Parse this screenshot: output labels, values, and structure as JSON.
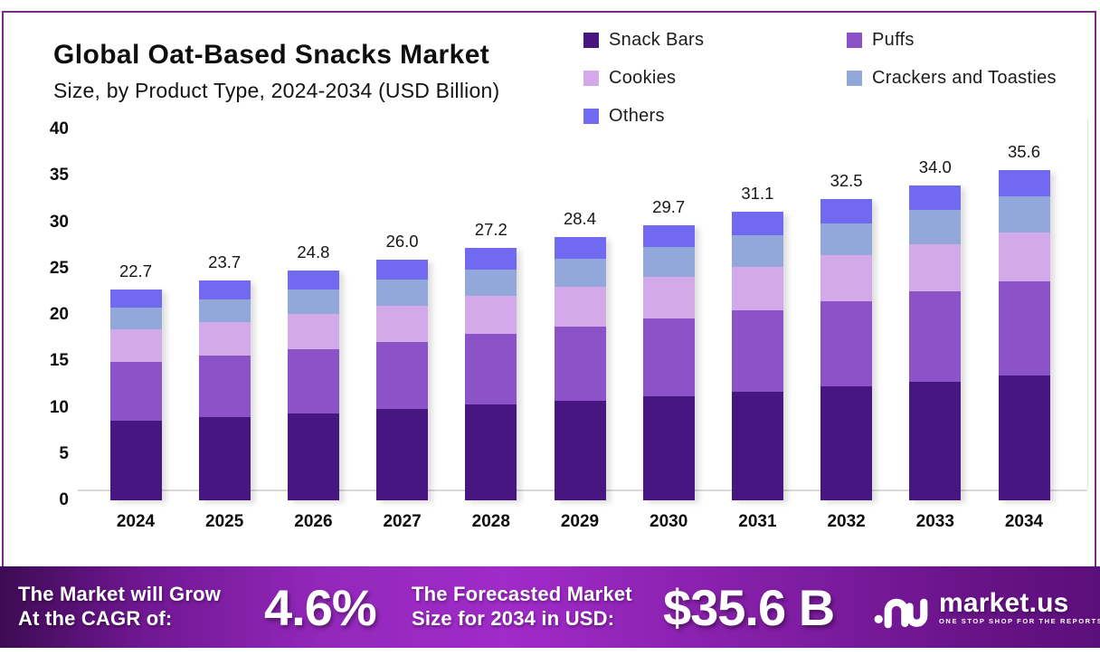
{
  "header": {
    "title": "Global Oat-Based Snacks Market",
    "subtitle": "Size, by  Product Type, 2024-2034 (USD Billion)"
  },
  "legend": {
    "position": "top-right",
    "items": [
      {
        "label": "Snack Bars",
        "color": "#481680"
      },
      {
        "label": "Puffs",
        "color": "#8C52C7"
      },
      {
        "label": "Cookies",
        "color": "#D3A9EA"
      },
      {
        "label": "Crackers and Toasties",
        "color": "#92A8DB"
      },
      {
        "label": "Others",
        "color": "#7169F0"
      }
    ]
  },
  "chart_data": {
    "type": "bar",
    "stacked": true,
    "title": "Global Oat-Based Snacks Market Size, by Product Type, 2024-2034 (USD Billion)",
    "categories": [
      "2024",
      "2025",
      "2026",
      "2027",
      "2028",
      "2029",
      "2030",
      "2031",
      "2032",
      "2033",
      "2034"
    ],
    "series": [
      {
        "name": "Snack Bars",
        "color": "#481680",
        "values": [
          8.6,
          9.0,
          9.4,
          9.9,
          10.3,
          10.7,
          11.2,
          11.7,
          12.3,
          12.8,
          13.5
        ]
      },
      {
        "name": "Puffs",
        "color": "#8C52C7",
        "values": [
          6.3,
          6.6,
          6.9,
          7.2,
          7.6,
          8.0,
          8.4,
          8.8,
          9.2,
          9.7,
          10.1
        ]
      },
      {
        "name": "Cookies",
        "color": "#D3A9EA",
        "values": [
          3.5,
          3.6,
          3.8,
          3.9,
          4.1,
          4.3,
          4.5,
          4.7,
          4.9,
          5.1,
          5.3
        ]
      },
      {
        "name": "Crackers and Toasties",
        "color": "#92A8DB",
        "values": [
          2.4,
          2.5,
          2.6,
          2.8,
          2.9,
          3.0,
          3.2,
          3.4,
          3.5,
          3.7,
          3.9
        ]
      },
      {
        "name": "Others",
        "color": "#7169F0",
        "values": [
          1.9,
          2.0,
          2.1,
          2.2,
          2.3,
          2.4,
          2.4,
          2.5,
          2.6,
          2.7,
          2.8
        ]
      }
    ],
    "totals": [
      22.7,
      23.7,
      24.8,
      26.0,
      27.2,
      28.4,
      29.7,
      31.1,
      32.5,
      34.0,
      35.6
    ],
    "total_labels": [
      "22.7",
      "23.7",
      "24.8",
      "26.0",
      "27.2",
      "28.4",
      "29.7",
      "31.1",
      "32.5",
      "34.0",
      "35.6"
    ],
    "xlabel": "",
    "ylabel": "",
    "ylim": [
      0,
      40
    ],
    "yticks": [
      0,
      5,
      10,
      15,
      20,
      25,
      30,
      35,
      40
    ],
    "grid": false,
    "legend_position": "top-right"
  },
  "banner": {
    "cagr_label_line1": "The Market will Grow",
    "cagr_label_line2": "At the CAGR of:",
    "cagr_value": "4.6%",
    "forecast_label_line1": "The Forecasted Market",
    "forecast_label_line2": "Size for 2034 in USD:",
    "forecast_value": "$35.6 B",
    "brand": "market.us",
    "brand_tagline": "ONE STOP SHOP FOR THE REPORTS"
  },
  "colors": {
    "card_border": "#7A2B84",
    "axis_line": "#d9d9d9",
    "banner_gradient_left": "#3D0B53",
    "banner_gradient_center": "#A02BC8",
    "banner_gradient_right": "#5C0F7B",
    "text_dark": "#0e0e0e",
    "text_light": "#ffffff"
  }
}
